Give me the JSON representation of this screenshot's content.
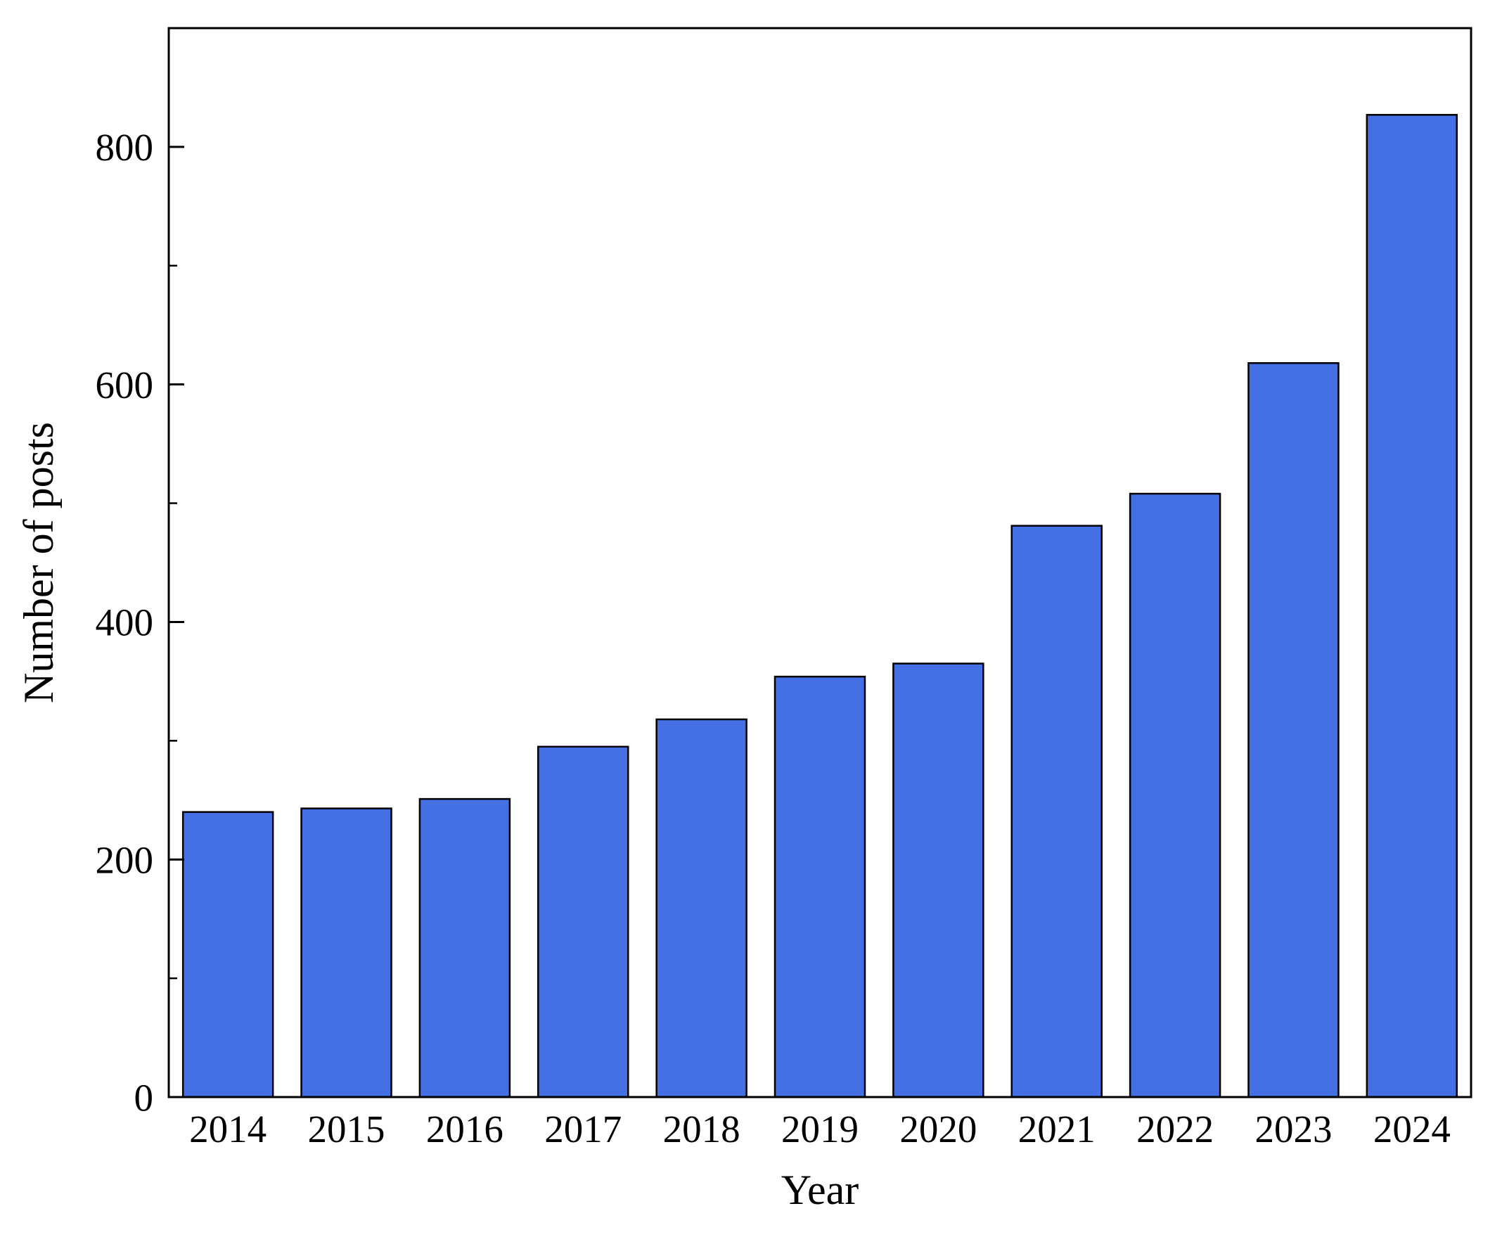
{
  "chart_data": {
    "type": "bar",
    "title": "",
    "xlabel": "Year",
    "ylabel": "Number of posts",
    "categories": [
      "2014",
      "2015",
      "2016",
      "2017",
      "2018",
      "2019",
      "2020",
      "2021",
      "2022",
      "2023",
      "2024"
    ],
    "values": [
      240,
      243,
      251,
      295,
      318,
      354,
      365,
      481,
      508,
      618,
      827
    ],
    "ylim": [
      0,
      900
    ],
    "yticks": [
      0,
      200,
      400,
      600,
      800
    ],
    "minor_tick_interval": 100,
    "grid": false,
    "legend": "none",
    "bar_color": "#4570e4",
    "bar_border_color": "#000000",
    "axis_color": "#000000",
    "background_color": "#ffffff"
  }
}
